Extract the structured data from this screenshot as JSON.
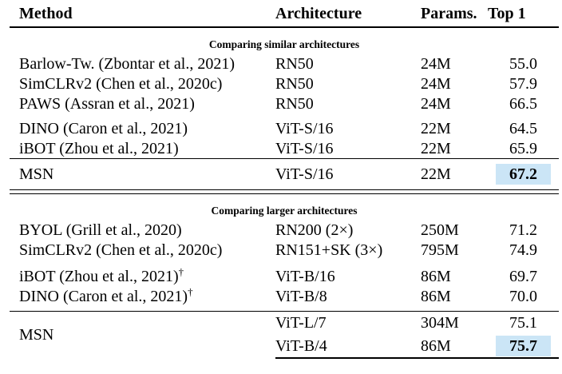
{
  "header": {
    "method": "Method",
    "architecture": "Architecture",
    "params": "Params.",
    "top1": "Top 1"
  },
  "section1": {
    "label": "Comparing similar architectures",
    "rows": [
      {
        "method": "Barlow-Tw. (Zbontar et al., 2021)",
        "arch": "RN50",
        "params": "24M",
        "top1": "55.0"
      },
      {
        "method": "SimCLRv2 (Chen et al., 2020c)",
        "arch": "RN50",
        "params": "24M",
        "top1": "57.9"
      },
      {
        "method": "PAWS (Assran et al., 2021)",
        "arch": "RN50",
        "params": "24M",
        "top1": "66.5"
      },
      {
        "method": "DINO (Caron et al., 2021)",
        "arch": "ViT-S/16",
        "params": "22M",
        "top1": "64.5"
      },
      {
        "method": "iBOT (Zhou et al., 2021)",
        "arch": "ViT-S/16",
        "params": "22M",
        "top1": "65.9"
      }
    ],
    "result": {
      "method": "MSN",
      "arch": "ViT-S/16",
      "params": "22M",
      "top1": "67.2"
    }
  },
  "section2": {
    "label": "Comparing larger architectures",
    "rows": [
      {
        "method": "BYOL (Grill et al., 2020)",
        "method_sup": "",
        "arch": "RN200 (2×)",
        "params": "250M",
        "top1": "71.2"
      },
      {
        "method": "SimCLRv2 (Chen et al., 2020c)",
        "method_sup": "",
        "arch": "RN151+SK (3×)",
        "params": "795M",
        "top1": "74.9"
      },
      {
        "method": "iBOT (Zhou et al., 2021)",
        "method_sup": "†",
        "arch": "ViT-B/16",
        "params": "86M",
        "top1": "69.7"
      },
      {
        "method": "DINO (Caron et al., 2021)",
        "method_sup": "†",
        "arch": "ViT-B/8",
        "params": "86M",
        "top1": "70.0"
      }
    ],
    "result": {
      "method": "MSN",
      "rows": [
        {
          "arch": "ViT-L/7",
          "params": "304M",
          "top1": "75.1"
        },
        {
          "arch": "ViT-B/4",
          "params": "86M",
          "top1": "75.7"
        }
      ]
    }
  },
  "colors": {
    "highlight": "#cbe5f6",
    "text": "#000000"
  }
}
